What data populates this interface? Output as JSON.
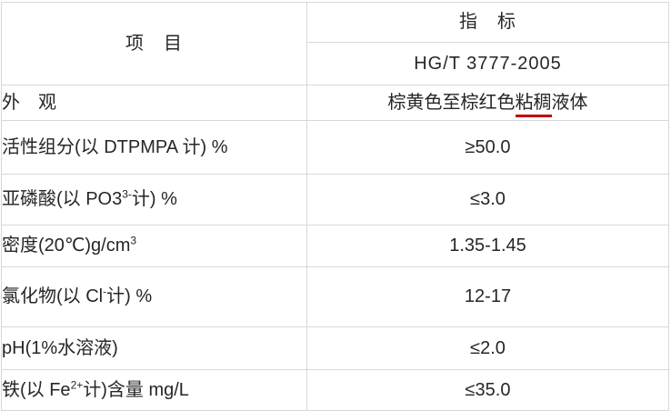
{
  "table": {
    "header": {
      "item_label": "项　目",
      "indicator_label": "指　标",
      "standard_label": "HG/T 3777-2005"
    },
    "rows": [
      {
        "label_segments": [
          {
            "text": "外　观"
          }
        ],
        "value_segments": [
          {
            "text": "棕黄色至棕红色"
          },
          {
            "text": "粘稠",
            "underline": true
          },
          {
            "text": "液体"
          }
        ]
      },
      {
        "label_segments": [
          {
            "text": "活性组分(以 DTPMPA 计) %"
          }
        ],
        "value_segments": [
          {
            "text": "≥50.0"
          }
        ]
      },
      {
        "label_segments": [
          {
            "text": "亚磷酸(以 PO3"
          },
          {
            "text": "3-",
            "sup": true
          },
          {
            "text": "计) %"
          }
        ],
        "value_segments": [
          {
            "text": "≤3.0"
          }
        ]
      },
      {
        "label_segments": [
          {
            "text": "密度(20℃)g/cm"
          },
          {
            "text": "3",
            "sup": true
          }
        ],
        "value_segments": [
          {
            "text": "1.35-1.45"
          }
        ]
      },
      {
        "label_segments": [
          {
            "text": "氯化物(以 Cl"
          },
          {
            "text": "-",
            "sup": true
          },
          {
            "text": "计) %"
          }
        ],
        "value_segments": [
          {
            "text": "12-17"
          }
        ]
      },
      {
        "label_segments": [
          {
            "text": "pH(1%水溶液)"
          }
        ],
        "value_segments": [
          {
            "text": "≤2.0"
          }
        ]
      },
      {
        "label_segments": [
          {
            "text": "铁(以 Fe"
          },
          {
            "text": "2+",
            "sup": true
          },
          {
            "text": "计)含量 mg/L"
          }
        ],
        "value_segments": [
          {
            "text": "≤35.0"
          }
        ]
      }
    ],
    "colors": {
      "border": "#d8d8d8",
      "text": "#262626",
      "spellcheck_underline": "#c00000"
    }
  }
}
